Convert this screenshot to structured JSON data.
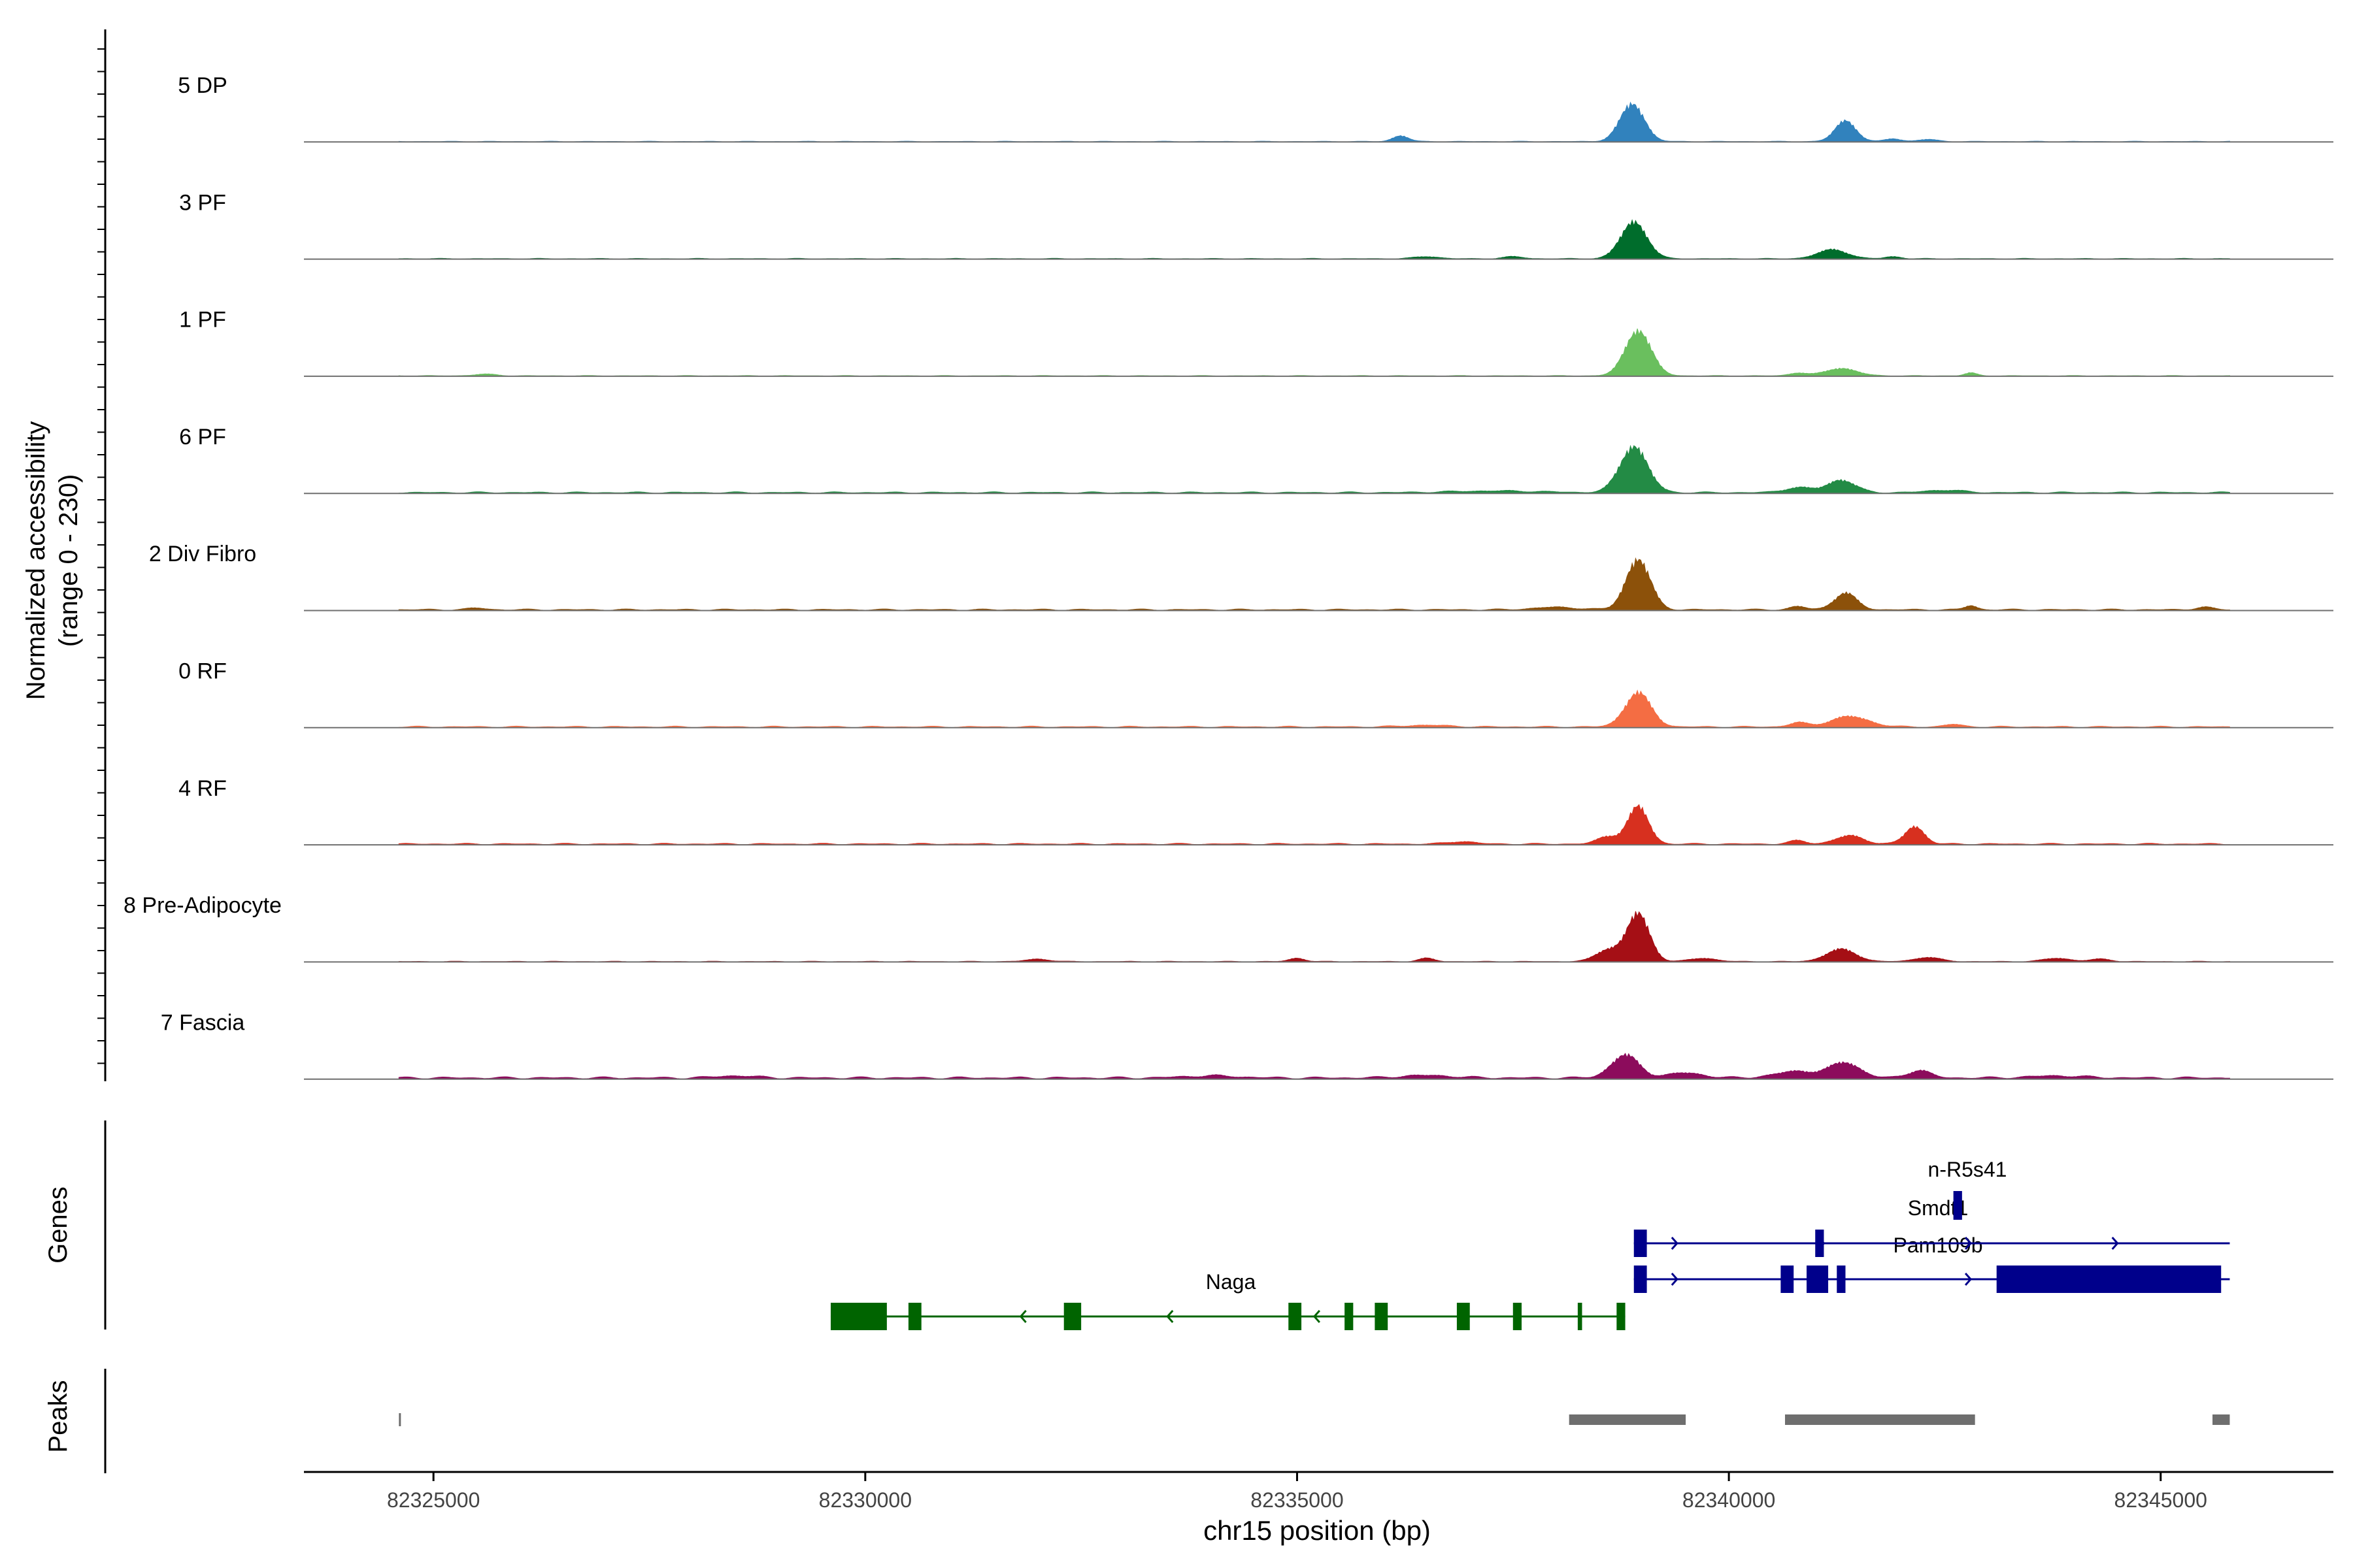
{
  "chart_data": {
    "type": "area",
    "figure": "coverage-track",
    "x_axis": {
      "label": "chr15 position (bp)",
      "range": [
        82323500,
        82347000
      ],
      "ticks": [
        82325000,
        82330000,
        82335000,
        82340000,
        82345000
      ],
      "tick_labels": [
        "82325000",
        "82330000",
        "82335000",
        "82340000",
        "82345000"
      ]
    },
    "coverage_axis": {
      "label_line1": "Normalized accessibility",
      "label_line2": "(range 0 - 230)",
      "ylim": [
        0,
        230
      ]
    },
    "region": {
      "start": 82324600,
      "end": 82345800
    },
    "tracks": [
      {
        "name": "5 DP",
        "color": "#3182bd",
        "baseline": 1,
        "peaks": [
          [
            82336200,
            14,
            90
          ],
          [
            82338880,
            90,
            140
          ],
          [
            82341350,
            50,
            120
          ],
          [
            82341900,
            7,
            90
          ],
          [
            82342300,
            5,
            110
          ]
        ]
      },
      {
        "name": "3 PF",
        "color": "#006d2c",
        "baseline": 1,
        "peaks": [
          [
            82336500,
            5,
            140
          ],
          [
            82337500,
            5,
            110
          ],
          [
            82338900,
            88,
            150
          ],
          [
            82341200,
            22,
            170
          ],
          [
            82341900,
            5,
            90
          ]
        ]
      },
      {
        "name": "1 PF",
        "color": "#6abf5e",
        "baseline": 1,
        "peaks": [
          [
            82325600,
            4,
            130
          ],
          [
            82338950,
            108,
            150
          ],
          [
            82340800,
            7,
            100
          ],
          [
            82341300,
            18,
            180
          ],
          [
            82342800,
            7,
            70
          ]
        ]
      },
      {
        "name": "6 PF",
        "color": "#238b45",
        "baseline": 2,
        "peaks": [
          [
            82337300,
            4,
            500
          ],
          [
            82338900,
            110,
            160
          ],
          [
            82340800,
            12,
            160
          ],
          [
            82341300,
            30,
            160
          ],
          [
            82342500,
            6,
            200
          ]
        ]
      },
      {
        "name": "2 Div Fibro",
        "color": "#8c510a",
        "baseline": 2,
        "peaks": [
          [
            82325500,
            4,
            100
          ],
          [
            82338000,
            6,
            250
          ],
          [
            82338950,
            120,
            140
          ],
          [
            82340800,
            8,
            90
          ],
          [
            82341350,
            40,
            130
          ],
          [
            82342800,
            10,
            70
          ],
          [
            82345500,
            6,
            100
          ]
        ]
      },
      {
        "name": "0 RF",
        "color": "#f46d43",
        "baseline": 2,
        "peaks": [
          [
            82336500,
            4,
            250
          ],
          [
            82338950,
            82,
            150
          ],
          [
            82340800,
            10,
            100
          ],
          [
            82341400,
            25,
            220
          ],
          [
            82342600,
            6,
            100
          ]
        ]
      },
      {
        "name": "4 RF",
        "color": "#d7301f",
        "baseline": 2,
        "peaks": [
          [
            82336900,
            6,
            150
          ],
          [
            82338600,
            18,
            120
          ],
          [
            82338950,
            90,
            120
          ],
          [
            82340800,
            8,
            100
          ],
          [
            82341400,
            20,
            160
          ],
          [
            82342150,
            42,
            110
          ]
        ]
      },
      {
        "name": "8 Pre-Adipocyte",
        "color": "#a50f15",
        "baseline": 1,
        "peaks": [
          [
            82332000,
            6,
            130
          ],
          [
            82335000,
            8,
            90
          ],
          [
            82336500,
            8,
            90
          ],
          [
            82338600,
            28,
            140
          ],
          [
            82338950,
            115,
            130
          ],
          [
            82339700,
            8,
            150
          ],
          [
            82341300,
            30,
            170
          ],
          [
            82342300,
            10,
            150
          ],
          [
            82343800,
            8,
            150
          ],
          [
            82344300,
            6,
            120
          ]
        ]
      },
      {
        "name": "7 Fascia",
        "color": "#8c0c5c",
        "baseline": 3,
        "peaks": [
          [
            82328500,
            5,
            220
          ],
          [
            82334000,
            5,
            300
          ],
          [
            82336500,
            6,
            300
          ],
          [
            82338800,
            55,
            160
          ],
          [
            82339500,
            12,
            200
          ],
          [
            82340800,
            16,
            250
          ],
          [
            82341350,
            36,
            170
          ],
          [
            82342200,
            18,
            130
          ],
          [
            82343800,
            5,
            300
          ]
        ]
      }
    ],
    "genes_panel": {
      "label": "Genes",
      "genes": [
        {
          "name": "Naga",
          "strand": "-",
          "color": "#006400",
          "start": 82329600,
          "end": 82338800,
          "exons": [
            [
              82329600,
              82330250
            ],
            [
              82330500,
              82330650
            ],
            [
              82332300,
              82332500
            ],
            [
              82334900,
              82335050
            ],
            [
              82335550,
              82335650
            ],
            [
              82335900,
              82336050
            ],
            [
              82336850,
              82337000
            ],
            [
              82337500,
              82337600
            ],
            [
              82338250,
              82338300
            ],
            [
              82338700,
              82338800
            ]
          ]
        },
        {
          "name": "Pam109b",
          "strand": "+",
          "color": "#00008b",
          "start": 82338900,
          "end": 82345800,
          "exons": [
            [
              82338900,
              82339050
            ],
            [
              82340600,
              82340750
            ],
            [
              82340900,
              82341150
            ],
            [
              82341250,
              82341350
            ],
            [
              82343100,
              82345700
            ]
          ]
        },
        {
          "name": "Smdt1",
          "strand": "+",
          "color": "#00008b",
          "start": 82338900,
          "end": 82345800,
          "exons": [
            [
              82338900,
              82339050
            ],
            [
              82341000,
              82341100
            ]
          ]
        },
        {
          "name": "n-R5s41",
          "strand": "+",
          "color": "#00008b",
          "start": 82342600,
          "end": 82342700,
          "exons": [
            [
              82342600,
              82342700
            ]
          ]
        }
      ]
    },
    "peaks_panel": {
      "label": "Peaks",
      "color": "#6e6e6e",
      "regions": [
        [
          82324600,
          82324620
        ],
        [
          82338150,
          82339500
        ],
        [
          82340650,
          82342850
        ],
        [
          82345600,
          82345800
        ]
      ]
    }
  }
}
